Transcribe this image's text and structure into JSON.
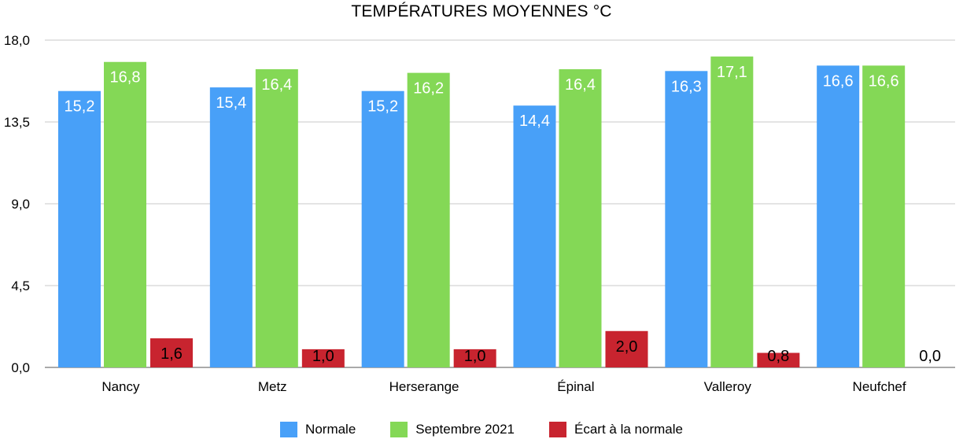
{
  "chart_data": {
    "type": "bar",
    "title": "TEMPÉRATURES MOYENNES °C",
    "xlabel": "",
    "ylabel": "",
    "ylim": [
      0,
      18
    ],
    "yticks": [
      0,
      4.5,
      9,
      13.5,
      18
    ],
    "ytick_labels": [
      "0,0",
      "4,5",
      "9,0",
      "13,5",
      "18,0"
    ],
    "grid": true,
    "legend_position": "bottom",
    "categories": [
      "Nancy",
      "Metz",
      "Herserange",
      "Épinal",
      "Valleroy",
      "Neufchef"
    ],
    "series": [
      {
        "name": "Normale",
        "color": "#48a0f8",
        "values": [
          15.2,
          15.4,
          15.2,
          14.4,
          16.3,
          16.6
        ],
        "labels": [
          "15,2",
          "15,4",
          "15,2",
          "14,4",
          "16,3",
          "16,6"
        ]
      },
      {
        "name": "Septembre 2021",
        "color": "#84d856",
        "values": [
          16.8,
          16.4,
          16.2,
          16.4,
          17.1,
          16.6
        ],
        "labels": [
          "16,8",
          "16,4",
          "16,2",
          "16,4",
          "17,1",
          "16,6"
        ]
      },
      {
        "name": "Écart à la normale",
        "color": "#c8242f",
        "values": [
          1.6,
          1.0,
          1.0,
          2.0,
          0.8,
          0.0
        ],
        "labels": [
          "1,6",
          "1,0",
          "1,0",
          "2,0",
          "0,8",
          "0,0"
        ]
      }
    ]
  }
}
